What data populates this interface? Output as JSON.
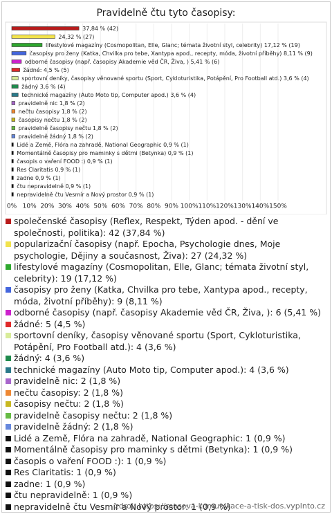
{
  "chart_data": {
    "type": "bar",
    "orientation": "horizontal",
    "title": "Pravidelně čtu tyto časopisy:",
    "categories": [
      null,
      null,
      "lifestylové magazíny (Cosmopolitan, Elle, Glanc; témata životní styl, celebrity)",
      "časopisy pro ženy (Katka, Chvilka pro tebe, Xantypa apod., recepty, móda, životní příběhy)",
      "odborné časopisy (např. časopisy Akademie věd ČR, Živa, )",
      "žádné:",
      "sportovní deníky, časopisy věnované sportu (Sport, Cykloturistika, Potápění, Pro Football atd.)",
      "žádný",
      "technické magazíny (Auto Moto tip, Computer apod.)",
      "pravidelně nic",
      "nečtu časopisy",
      "časopisy nečtu",
      "pravidelně časopisy nečtu",
      "pravidelně žádný",
      "Lidé a Země, Flóra na zahradě, National Geographic",
      "Momentálně časopisy pro maminky s dětmi (Betynka)",
      "časopis o vaření FOOD :)",
      "Res Claritatis",
      "zadne",
      "čtu nepravidelně",
      "nepravidelně čtu Vesmír a Nový prostor"
    ],
    "values": [
      37.84,
      24.32,
      17.12,
      8.11,
      5.41,
      4.5,
      3.6,
      3.6,
      3.6,
      1.8,
      1.8,
      1.8,
      1.8,
      1.8,
      0.9,
      0.9,
      0.9,
      0.9,
      0.9,
      0.9,
      0.9
    ],
    "value_labels": [
      "37,84 % (42)",
      "24,32 % (27)",
      "17,12 % (19)",
      "8,11 % (9)",
      "5,41 % (6)",
      "4,5 % (5)",
      "3,6 % (4)",
      "3,6 % (4)",
      "3,6 % (4)",
      "1,8 % (2)",
      "1,8 % (2)",
      "1,8 % (2)",
      "1,8 % (2)",
      "1,8 % (2)",
      "0,9 % (1)",
      "0,9 % (1)",
      "0,9 % (1)",
      "0,9 % (1)",
      "0,9 % (1)",
      "0,9 % (1)",
      "0,9 % (1)"
    ],
    "colors": [
      "#b81c1c",
      "#f2e34c",
      "#2ea82e",
      "#4466dd",
      "#cc22cc",
      "#e02a2a",
      "#d8ec9a",
      "#1f8a4c",
      "#2a7a8a",
      "#a866cc",
      "#ee8833",
      "#c8b820",
      "#66bb44",
      "#6688dd",
      "#111111",
      "#111111",
      "#111111",
      "#111111",
      "#111111",
      "#111111",
      "#111111"
    ],
    "legend": [
      "společenské časopisy (Reflex, Respekt, Týden apod. - dění ve společnosti, politika): 42 (37,84 %)",
      "popularizační časopisy (např. Epocha, Psychologie dnes, Moje psychologie, Dějiny a současnost, Živa): 27 (24,32 %)",
      "lifestylové magazíny (Cosmopolitan, Elle, Glanc; témata životní styl, celebrity): 19 (17,12 %)",
      "časopisy pro ženy (Katka, Chvilka pro tebe, Xantypa apod., recepty, móda, životní příběhy): 9 (8,11 %)",
      "odborné časopisy (např. časopisy Akademie věd ČR, Živa, ): 6 (5,41 %)",
      "žádné: 5 (4,5 %)",
      "sportovní deníky, časopisy věnované sportu (Sport, Cykloturistika, Potápění, Pro Football atd.): 4 (3,6 %)",
      "žádný: 4 (3,6 %)",
      "technické magazíny (Auto Moto tip, Computer apod.): 4 (3,6 %)",
      "pravidelně nic: 2 (1,8 %)",
      "nečtu časopisy: 2 (1,8 %)",
      "časopisy nečtu: 2 (1,8 %)",
      "pravidelně časopisy nečtu: 2 (1,8 %)",
      "pravidelně žádný: 2 (1,8 %)",
      "Lidé a Země, Flóra na zahradě, National Geographic: 1 (0,9 %)",
      "Momentálně časopisy pro maminky s dětmi (Betynka): 1 (0,9 %)",
      "časopis o vaření FOOD :): 1 (0,9 %)",
      "Res Claritatis: 1 (0,9 %)",
      "zadne: 1 (0,9 %)",
      "čtu nepravidelně: 1 (0,9 %)",
      "nepravidelně čtu Vesmír a Nový prostor: 1 (0,9 %)"
    ],
    "xlim": [
      0,
      150
    ],
    "xticks": [
      {
        "value": 0,
        "label": "0%"
      },
      {
        "value": 10,
        "label": "10%"
      },
      {
        "value": 20,
        "label": "20%"
      },
      {
        "value": 30,
        "label": "30%"
      },
      {
        "value": 40,
        "label": "40%"
      },
      {
        "value": 50,
        "label": "50%"
      },
      {
        "value": 60,
        "label": "60%"
      },
      {
        "value": 70,
        "label": "70%"
      },
      {
        "value": 80,
        "label": "80%"
      },
      {
        "value": 90,
        "label": "90%"
      },
      {
        "value": 100,
        "label": "100%"
      },
      {
        "value": 110,
        "label": "110%"
      },
      {
        "value": 120,
        "label": "120%"
      },
      {
        "value": 130,
        "label": "130%"
      },
      {
        "value": 140,
        "label": "140%"
      },
      {
        "value": 150,
        "label": "150%"
      }
    ],
    "grid": true,
    "source": "zdroj: https://masova-komunikace-a-tisk-dos.vyplnto.cz"
  }
}
